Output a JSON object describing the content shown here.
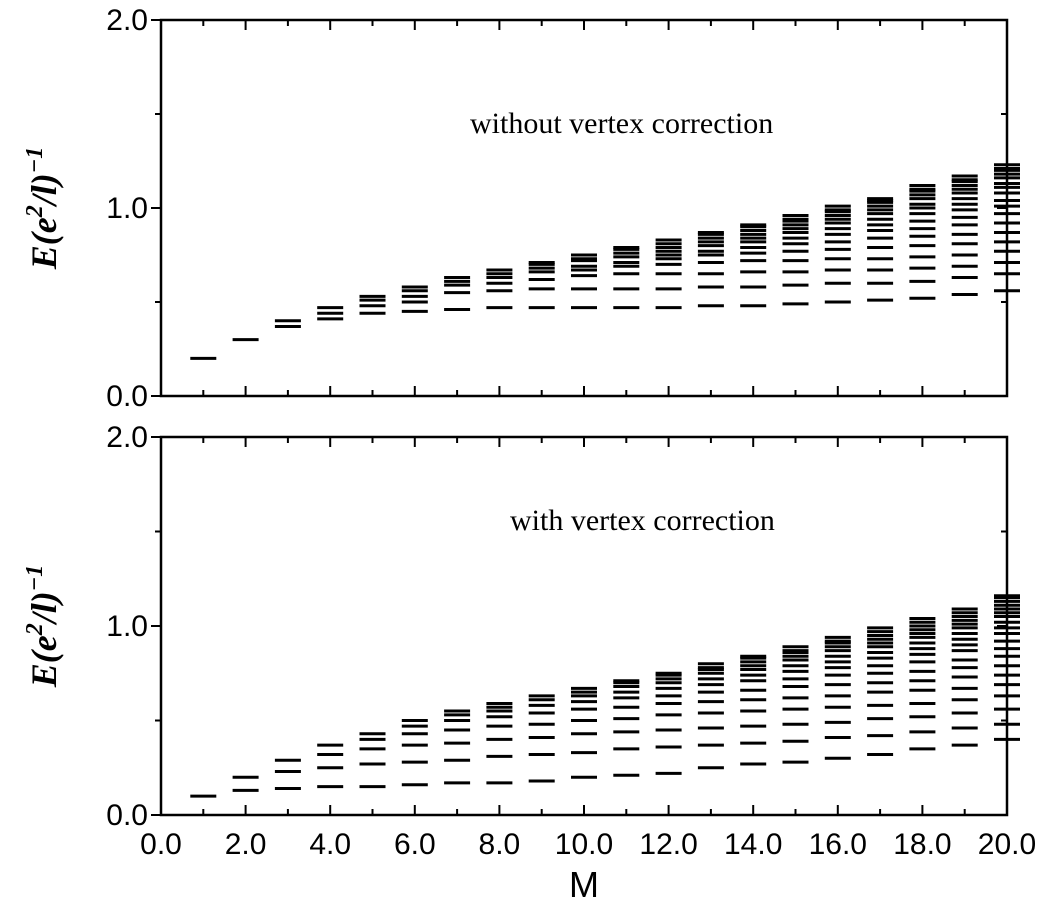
{
  "chart_data": [
    {
      "type": "scatter",
      "marker": "horizontal-dash",
      "annotation": "without vertex correction",
      "ylabel_base": "E(e",
      "ylabel_sup1": "2",
      "ylabel_mid": "/l)",
      "ylabel_sup2": "−1",
      "ylim": [
        0,
        2
      ],
      "yticks": [
        "0.0",
        "1.0",
        "2.0"
      ],
      "series": [
        {
          "x": 1,
          "y": [
            0.2
          ]
        },
        {
          "x": 2,
          "y": [
            0.3
          ]
        },
        {
          "x": 3,
          "y": [
            0.37,
            0.4
          ]
        },
        {
          "x": 4,
          "y": [
            0.41,
            0.44,
            0.47
          ]
        },
        {
          "x": 5,
          "y": [
            0.44,
            0.48,
            0.51,
            0.53
          ]
        },
        {
          "x": 6,
          "y": [
            0.45,
            0.5,
            0.53,
            0.56,
            0.58
          ]
        },
        {
          "x": 7,
          "y": [
            0.46,
            0.55,
            0.59,
            0.61,
            0.63
          ]
        },
        {
          "x": 8,
          "y": [
            0.47,
            0.56,
            0.6,
            0.63,
            0.65,
            0.67
          ]
        },
        {
          "x": 9,
          "y": [
            0.47,
            0.57,
            0.62,
            0.66,
            0.68,
            0.7,
            0.71
          ]
        },
        {
          "x": 10,
          "y": [
            0.47,
            0.57,
            0.64,
            0.67,
            0.69,
            0.72,
            0.73,
            0.75
          ]
        },
        {
          "x": 11,
          "y": [
            0.47,
            0.57,
            0.65,
            0.69,
            0.71,
            0.74,
            0.76,
            0.78,
            0.79
          ]
        },
        {
          "x": 12,
          "y": [
            0.47,
            0.57,
            0.65,
            0.7,
            0.73,
            0.75,
            0.77,
            0.79,
            0.81,
            0.83
          ]
        },
        {
          "x": 13,
          "y": [
            0.48,
            0.58,
            0.65,
            0.71,
            0.75,
            0.77,
            0.8,
            0.82,
            0.84,
            0.86,
            0.87
          ]
        },
        {
          "x": 14,
          "y": [
            0.48,
            0.58,
            0.66,
            0.72,
            0.76,
            0.79,
            0.82,
            0.84,
            0.86,
            0.88,
            0.9,
            0.91
          ]
        },
        {
          "x": 15,
          "y": [
            0.49,
            0.59,
            0.66,
            0.72,
            0.77,
            0.81,
            0.84,
            0.87,
            0.89,
            0.91,
            0.93,
            0.94,
            0.96
          ]
        },
        {
          "x": 16,
          "y": [
            0.5,
            0.6,
            0.67,
            0.73,
            0.78,
            0.82,
            0.86,
            0.89,
            0.92,
            0.94,
            0.96,
            0.98,
            0.99,
            1.01
          ]
        },
        {
          "x": 17,
          "y": [
            0.51,
            0.6,
            0.67,
            0.73,
            0.79,
            0.84,
            0.88,
            0.91,
            0.94,
            0.97,
            0.99,
            1.01,
            1.03,
            1.04,
            1.05
          ]
        },
        {
          "x": 18,
          "y": [
            0.52,
            0.61,
            0.68,
            0.74,
            0.8,
            0.85,
            0.89,
            0.93,
            0.97,
            1.0,
            1.02,
            1.05,
            1.07,
            1.09,
            1.1,
            1.12
          ]
        },
        {
          "x": 19,
          "y": [
            0.54,
            0.63,
            0.69,
            0.75,
            0.81,
            0.86,
            0.91,
            0.95,
            0.99,
            1.02,
            1.05,
            1.08,
            1.1,
            1.12,
            1.14,
            1.15,
            1.17
          ]
        },
        {
          "x": 20,
          "y": [
            0.56,
            0.65,
            0.71,
            0.77,
            0.82,
            0.87,
            0.92,
            0.97,
            1.01,
            1.04,
            1.08,
            1.11,
            1.13,
            1.16,
            1.18,
            1.2,
            1.21,
            1.23
          ]
        }
      ]
    },
    {
      "type": "scatter",
      "marker": "horizontal-dash",
      "annotation": "with vertex correction",
      "ylabel_base": "E(e",
      "ylabel_sup1": "2",
      "ylabel_mid": "/l)",
      "ylabel_sup2": "−1",
      "xlabel": "M",
      "xlim": [
        0,
        20
      ],
      "xticks": [
        "0.0",
        "2.0",
        "4.0",
        "6.0",
        "8.0",
        "10.0",
        "12.0",
        "14.0",
        "16.0",
        "18.0",
        "20.0"
      ],
      "ylim": [
        0,
        2
      ],
      "yticks": [
        "0.0",
        "1.0",
        "2.0"
      ],
      "series": [
        {
          "x": 1,
          "y": [
            0.1
          ]
        },
        {
          "x": 2,
          "y": [
            0.13,
            0.2
          ]
        },
        {
          "x": 3,
          "y": [
            0.14,
            0.23,
            0.29
          ]
        },
        {
          "x": 4,
          "y": [
            0.15,
            0.25,
            0.32,
            0.37
          ]
        },
        {
          "x": 5,
          "y": [
            0.15,
            0.27,
            0.35,
            0.4,
            0.43
          ]
        },
        {
          "x": 6,
          "y": [
            0.16,
            0.28,
            0.37,
            0.43,
            0.47,
            0.5
          ]
        },
        {
          "x": 7,
          "y": [
            0.17,
            0.29,
            0.38,
            0.45,
            0.5,
            0.53,
            0.55
          ]
        },
        {
          "x": 8,
          "y": [
            0.17,
            0.31,
            0.4,
            0.47,
            0.52,
            0.55,
            0.57,
            0.59
          ]
        },
        {
          "x": 9,
          "y": [
            0.18,
            0.32,
            0.41,
            0.48,
            0.54,
            0.58,
            0.61,
            0.63
          ]
        },
        {
          "x": 10,
          "y": [
            0.2,
            0.33,
            0.43,
            0.5,
            0.56,
            0.6,
            0.63,
            0.65,
            0.67
          ]
        },
        {
          "x": 11,
          "y": [
            0.21,
            0.35,
            0.44,
            0.51,
            0.57,
            0.62,
            0.65,
            0.68,
            0.7,
            0.71
          ]
        },
        {
          "x": 12,
          "y": [
            0.22,
            0.36,
            0.45,
            0.53,
            0.59,
            0.63,
            0.67,
            0.7,
            0.72,
            0.74,
            0.75
          ]
        },
        {
          "x": 13,
          "y": [
            0.25,
            0.37,
            0.46,
            0.54,
            0.6,
            0.65,
            0.69,
            0.72,
            0.75,
            0.77,
            0.78,
            0.8
          ]
        },
        {
          "x": 14,
          "y": [
            0.27,
            0.38,
            0.47,
            0.55,
            0.61,
            0.66,
            0.71,
            0.74,
            0.77,
            0.79,
            0.81,
            0.83,
            0.84
          ]
        },
        {
          "x": 15,
          "y": [
            0.28,
            0.39,
            0.48,
            0.56,
            0.62,
            0.68,
            0.72,
            0.76,
            0.79,
            0.82,
            0.84,
            0.86,
            0.87,
            0.89
          ]
        },
        {
          "x": 16,
          "y": [
            0.3,
            0.41,
            0.49,
            0.57,
            0.63,
            0.69,
            0.74,
            0.78,
            0.81,
            0.84,
            0.87,
            0.89,
            0.91,
            0.92,
            0.94
          ]
        },
        {
          "x": 17,
          "y": [
            0.32,
            0.42,
            0.51,
            0.58,
            0.65,
            0.7,
            0.75,
            0.79,
            0.83,
            0.86,
            0.89,
            0.91,
            0.93,
            0.95,
            0.97,
            0.99
          ]
        },
        {
          "x": 18,
          "y": [
            0.35,
            0.44,
            0.52,
            0.59,
            0.66,
            0.71,
            0.76,
            0.81,
            0.85,
            0.88,
            0.91,
            0.94,
            0.96,
            0.98,
            1.0,
            1.02,
            1.04
          ]
        },
        {
          "x": 19,
          "y": [
            0.37,
            0.46,
            0.54,
            0.61,
            0.67,
            0.73,
            0.78,
            0.82,
            0.87,
            0.9,
            0.93,
            0.96,
            0.99,
            1.01,
            1.03,
            1.05,
            1.07,
            1.09
          ]
        },
        {
          "x": 20,
          "y": [
            0.4,
            0.48,
            0.56,
            0.63,
            0.69,
            0.74,
            0.79,
            0.84,
            0.88,
            0.92,
            0.96,
            0.99,
            1.02,
            1.05,
            1.07,
            1.09,
            1.11,
            1.13,
            1.15,
            1.16
          ]
        }
      ]
    }
  ]
}
